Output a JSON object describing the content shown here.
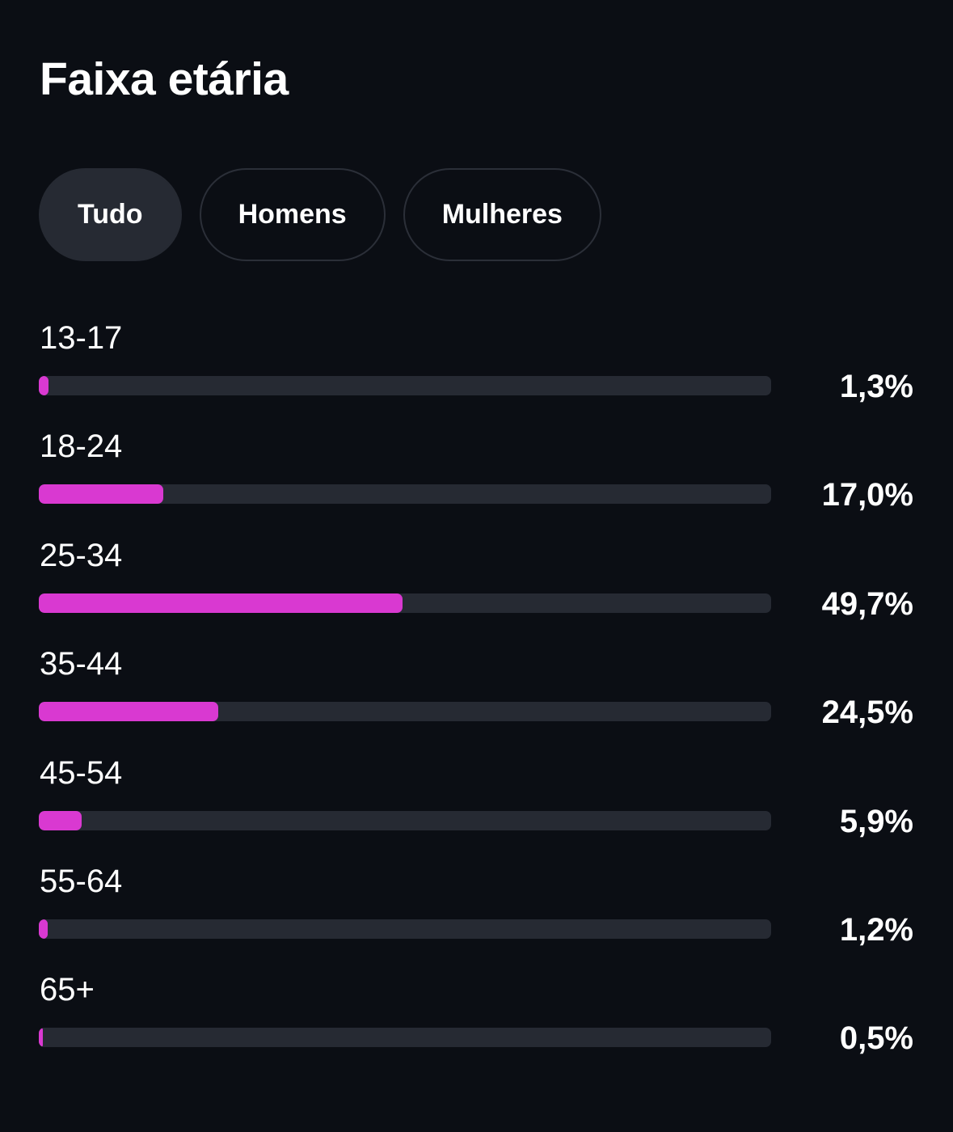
{
  "title": "Faixa etária",
  "tabs": [
    {
      "label": "Tudo",
      "active": true
    },
    {
      "label": "Homens",
      "active": false
    },
    {
      "label": "Mulheres",
      "active": false
    }
  ],
  "colors": {
    "background": "#0b0e14",
    "track": "#262a33",
    "accent": "#d939d1",
    "text": "#ffffff"
  },
  "chart_data": {
    "type": "bar",
    "orientation": "horizontal",
    "categories": [
      "13-17",
      "18-24",
      "25-34",
      "35-44",
      "45-54",
      "55-64",
      "65+"
    ],
    "values": [
      1.3,
      17.0,
      49.7,
      24.5,
      5.9,
      1.2,
      0.5
    ],
    "value_labels": [
      "1,3%",
      "17,0%",
      "49,7%",
      "24,5%",
      "5,9%",
      "1,2%",
      "0,5%"
    ],
    "xlim": [
      0,
      100
    ],
    "grid": false
  }
}
